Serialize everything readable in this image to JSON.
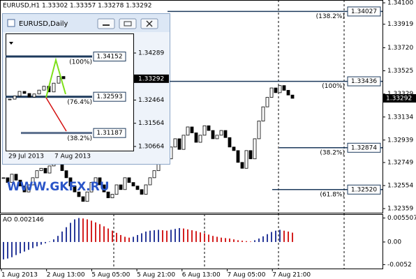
{
  "header": "EURUSD,H1  1.33302 1.33357 1.33278 1.33292",
  "watermark": "WWW.GKFX.RU",
  "main": {
    "ylim": [
      1.32324,
      1.34124
    ],
    "price_ticks": [
      {
        "value": 1.341,
        "label": "1.34100"
      },
      1.33919,
      {
        "value": 1.3372,
        "label": "1.33720"
      },
      1.33525,
      1.33329,
      1.33134,
      1.32939,
      1.32749,
      1.32554,
      1.32359
    ],
    "current_price": {
      "value": 1.33292,
      "label": "1.33292"
    },
    "levels": [
      {
        "price": {
          "value": 1.34027,
          "label": "1.34027"
        },
        "ratio": "(138.2%)"
      },
      {
        "price": {
          "value": 1.33436,
          "label": "1.33436"
        },
        "ratio": "(100%)"
      },
      {
        "price": {
          "value": 1.32874,
          "label": "1.32874"
        },
        "ratio": "(38.2%)"
      },
      {
        "price": {
          "value": 1.3252,
          "label": "1.32520"
        },
        "ratio": "(61.8%)"
      }
    ],
    "closes": [
      1.3262,
      1.3258,
      1.3265,
      1.326,
      1.3255,
      1.325,
      1.3256,
      1.3262,
      1.3268,
      1.327,
      1.3266,
      1.3272,
      1.3278,
      1.3274,
      1.3268,
      1.3262,
      1.3255,
      1.325,
      1.3246,
      1.3242,
      1.325,
      1.3258,
      1.3262,
      1.3256,
      1.325,
      1.3245,
      1.3248,
      1.3256,
      1.3252,
      1.3262,
      1.3258,
      1.3255,
      1.3252,
      1.3248,
      1.3256,
      1.3262,
      1.3268,
      1.3275,
      1.3282,
      1.3278,
      1.3288,
      1.3295,
      1.3286,
      1.3298,
      1.3305,
      1.33,
      1.3292,
      1.3298,
      1.3306,
      1.3302,
      1.3295,
      1.3298,
      1.3302,
      1.3296,
      1.3288,
      1.3285,
      1.3275,
      1.327,
      1.3285,
      1.3278,
      1.3295,
      1.331,
      1.3322,
      1.333,
      1.3338,
      1.3334,
      1.334,
      1.3336,
      1.3332,
      1.33292
    ],
    "time_labels": [
      "1 Aug 2013",
      "2 Aug 13:00",
      "5 Aug 05:00",
      "5 Aug 21:00",
      "6 Aug 13:00",
      "7 Aug 05:00",
      "7 Aug 21:00"
    ]
  },
  "ao": {
    "label": "AO 0.002146",
    "ylim": [
      -0.0061,
      0.0064
    ],
    "ticks": [
      {
        "value": 0.005507,
        "label": "0.005507"
      },
      {
        "value": 0,
        "label": "0.00"
      },
      {
        "value": -0.0052,
        "label": "-0.0052"
      }
    ],
    "values": [
      -0.004,
      -0.0038,
      -0.0035,
      -0.003,
      -0.0026,
      -0.0022,
      -0.0018,
      -0.0014,
      -0.001,
      -0.0006,
      -0.0003,
      0.0001,
      0.0006,
      0.0014,
      0.0024,
      0.0034,
      0.0044,
      0.0052,
      0.0055,
      0.0054,
      0.0052,
      0.0049,
      0.0045,
      0.0041,
      0.0036,
      0.0031,
      0.0026,
      0.0021,
      0.0016,
      0.0012,
      0.001,
      0.0012,
      0.0016,
      0.002,
      0.0024,
      0.0026,
      0.0027,
      0.0028,
      0.0027,
      0.0026,
      0.0028,
      0.003,
      0.0032,
      0.0031,
      0.0029,
      0.0027,
      0.0025,
      0.0022,
      0.002,
      0.0017,
      0.0014,
      0.0012,
      0.001,
      0.0009,
      0.0008,
      0.0006,
      0.0004,
      0.0003,
      0.0002,
      0.0001,
      0.0004,
      0.0008,
      0.0013,
      0.0018,
      0.0023,
      0.0026,
      0.0028,
      0.0026,
      0.0024,
      0.002146
    ]
  },
  "inset": {
    "title": "EURUSD,Daily",
    "ylim": [
      1.30529,
      1.34992
    ],
    "price_ticks": [
      1.34289,
      1.32464,
      1.31564,
      1.30664
    ],
    "current_price": {
      "value": 1.33292,
      "label": "1.33292"
    },
    "levels": [
      {
        "price": 1.34152,
        "ratio": "(100%)"
      },
      {
        "price": 1.32593,
        "ratio": "(76.4%)"
      },
      {
        "price": 1.31187,
        "ratio": "(38.2%)"
      }
    ],
    "dates": [
      "29 Jul 2013",
      "7 Aug 2013"
    ],
    "closes": [
      1.325,
      1.3262,
      1.328,
      1.3272,
      1.3258,
      1.327,
      1.3285,
      1.33,
      1.3278,
      1.3312,
      1.3338,
      1.3329
    ]
  }
}
